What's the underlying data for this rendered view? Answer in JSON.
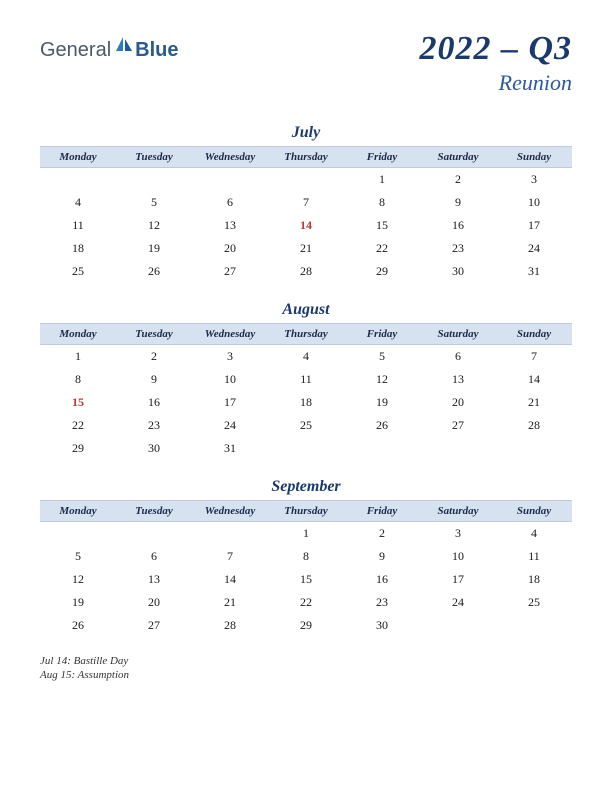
{
  "logo": {
    "part1": "General",
    "part2": "Blue"
  },
  "header": {
    "title": "2022 – Q3",
    "subtitle": "Reunion"
  },
  "colors": {
    "header_bg": "#d6e2f0",
    "title_color": "#1a3a6e",
    "subtitle_color": "#2b5a9e",
    "holiday_color": "#c0392b",
    "logo_dark": "#4a5a6a",
    "logo_blue": "#2b5a8f"
  },
  "day_headers": [
    "Monday",
    "Tuesday",
    "Wednesday",
    "Thursday",
    "Friday",
    "Saturday",
    "Sunday"
  ],
  "months": [
    {
      "name": "July",
      "weeks": [
        [
          "",
          "",
          "",
          "",
          "1",
          "2",
          "3"
        ],
        [
          "4",
          "5",
          "6",
          "7",
          "8",
          "9",
          "10"
        ],
        [
          "11",
          "12",
          "13",
          "14",
          "15",
          "16",
          "17"
        ],
        [
          "18",
          "19",
          "20",
          "21",
          "22",
          "23",
          "24"
        ],
        [
          "25",
          "26",
          "27",
          "28",
          "29",
          "30",
          "31"
        ]
      ],
      "holidays": [
        "14"
      ]
    },
    {
      "name": "August",
      "weeks": [
        [
          "1",
          "2",
          "3",
          "4",
          "5",
          "6",
          "7"
        ],
        [
          "8",
          "9",
          "10",
          "11",
          "12",
          "13",
          "14"
        ],
        [
          "15",
          "16",
          "17",
          "18",
          "19",
          "20",
          "21"
        ],
        [
          "22",
          "23",
          "24",
          "25",
          "26",
          "27",
          "28"
        ],
        [
          "29",
          "30",
          "31",
          "",
          "",
          "",
          ""
        ]
      ],
      "holidays": [
        "15"
      ]
    },
    {
      "name": "September",
      "weeks": [
        [
          "",
          "",
          "",
          "1",
          "2",
          "3",
          "4"
        ],
        [
          "5",
          "6",
          "7",
          "8",
          "9",
          "10",
          "11"
        ],
        [
          "12",
          "13",
          "14",
          "15",
          "16",
          "17",
          "18"
        ],
        [
          "19",
          "20",
          "21",
          "22",
          "23",
          "24",
          "25"
        ],
        [
          "26",
          "27",
          "28",
          "29",
          "30",
          "",
          ""
        ]
      ],
      "holidays": []
    }
  ],
  "holiday_notes": [
    "Jul 14: Bastille Day",
    "Aug 15: Assumption"
  ]
}
